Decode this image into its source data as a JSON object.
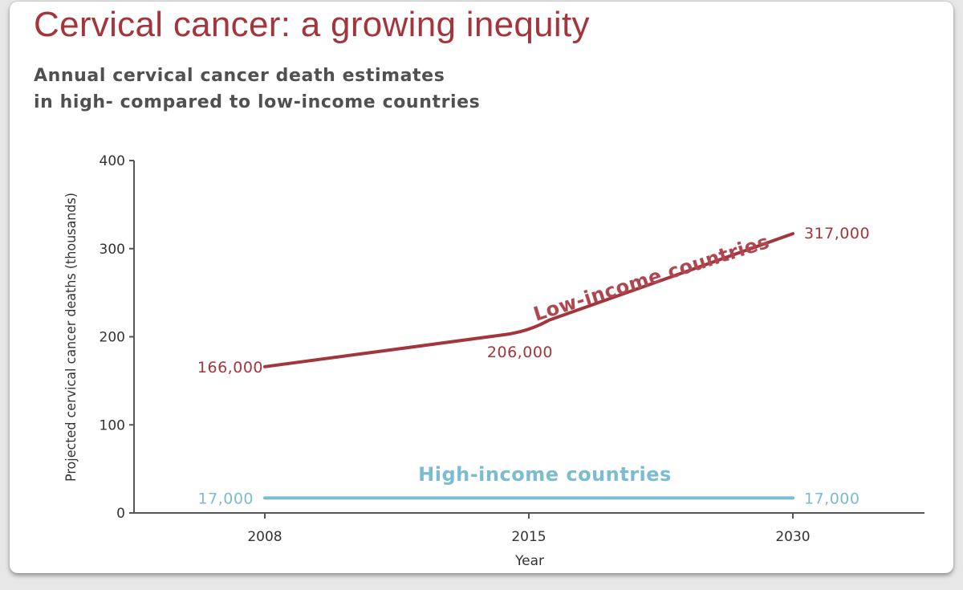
{
  "header": {
    "title": "Cervical cancer: a growing inequity",
    "subtitle_lines": [
      "Annual cervical cancer death estimates",
      "in high- compared to low-income countries"
    ]
  },
  "chart_data": {
    "type": "line",
    "title": "Cervical cancer: a growing inequity",
    "subtitle": "Annual cervical cancer death estimates in high- compared to low-income countries",
    "xlabel": "Year",
    "ylabel": "Projected cervical cancer deaths (thousands)",
    "categories": [
      "2008",
      "2015",
      "2030"
    ],
    "ylim": [
      0,
      400
    ],
    "yticks": [
      0,
      100,
      200,
      300,
      400
    ],
    "grid": false,
    "series": [
      {
        "name": "Low-income countries",
        "values": [
          166,
          206,
          317
        ],
        "labels": [
          "166,000",
          "206,000",
          "317,000"
        ],
        "color": "#a3353c"
      },
      {
        "name": "High-income countries",
        "values": [
          17,
          17,
          17
        ],
        "labels": [
          "17,000",
          "",
          "17,000"
        ],
        "color": "#7bbcd0"
      }
    ]
  },
  "colors": {
    "title": "#a3353c",
    "subtitle": "#505050",
    "axis": "#555555",
    "low_income": "#a3353c",
    "low_income_label": "#b04750",
    "high_income": "#7bbcd0"
  }
}
